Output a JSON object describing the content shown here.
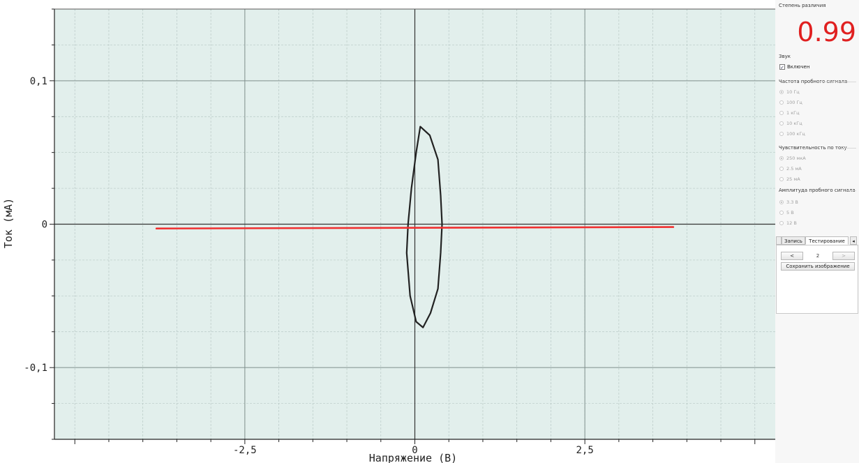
{
  "chart_data": {
    "type": "line",
    "xlabel": "Напряжение (В)",
    "ylabel": "Ток (мА)",
    "xlim": [
      -5.3,
      5.3
    ],
    "ylim": [
      -0.15,
      0.15
    ],
    "xticks": [
      -2.5,
      0,
      2.5
    ],
    "xtick_labels": [
      "-2,5",
      "0",
      "2,5"
    ],
    "yticks": [
      0.1,
      0,
      -0.1
    ],
    "ytick_labels": [
      "0,1",
      "0",
      "-0,1"
    ],
    "grid": true,
    "series": [
      {
        "color": "#222222",
        "x": [
          0.08,
          0.22,
          0.34,
          0.38,
          0.4,
          0.38,
          0.34,
          0.23,
          0.12,
          0.02,
          -0.07,
          -0.12,
          -0.1,
          -0.05,
          0.02,
          0.08
        ],
        "y": [
          0.068,
          0.062,
          0.045,
          0.02,
          0.0,
          -0.02,
          -0.045,
          -0.062,
          -0.072,
          -0.068,
          -0.05,
          -0.02,
          0.0,
          0.025,
          0.05,
          0.068
        ]
      },
      {
        "color": "#f03030",
        "x": [
          -3.8,
          3.8
        ],
        "y": [
          -0.003,
          -0.002
        ]
      }
    ]
  },
  "panel": {
    "diff_label": "Степень различия",
    "diff_value": "0.99",
    "sound_label": "Звук",
    "sound_checkbox_label": "Включен",
    "sound_checked": true,
    "freq_label": "Частота пробного сигнала",
    "freq_options": [
      "10 Гц",
      "100 Гц",
      "1 кГц",
      "10 кГц",
      "100 кГц"
    ],
    "freq_selected": 0,
    "sens_label": "Чувствительность по току",
    "sens_options": [
      "250 мкА",
      "2.5 мА",
      "25 мА"
    ],
    "sens_selected": 0,
    "amp_label": "Амплитуда пробного сигнала",
    "amp_options": [
      "3.3 В",
      "5 В",
      "12 В"
    ],
    "amp_selected": 0,
    "tab_record": "Запись",
    "tab_testing": "Тестирование",
    "tab_arrow": "◂",
    "prev_button": "<",
    "page_number": "2",
    "next_button": ">",
    "save_image_button": "Сохранить изображение"
  }
}
